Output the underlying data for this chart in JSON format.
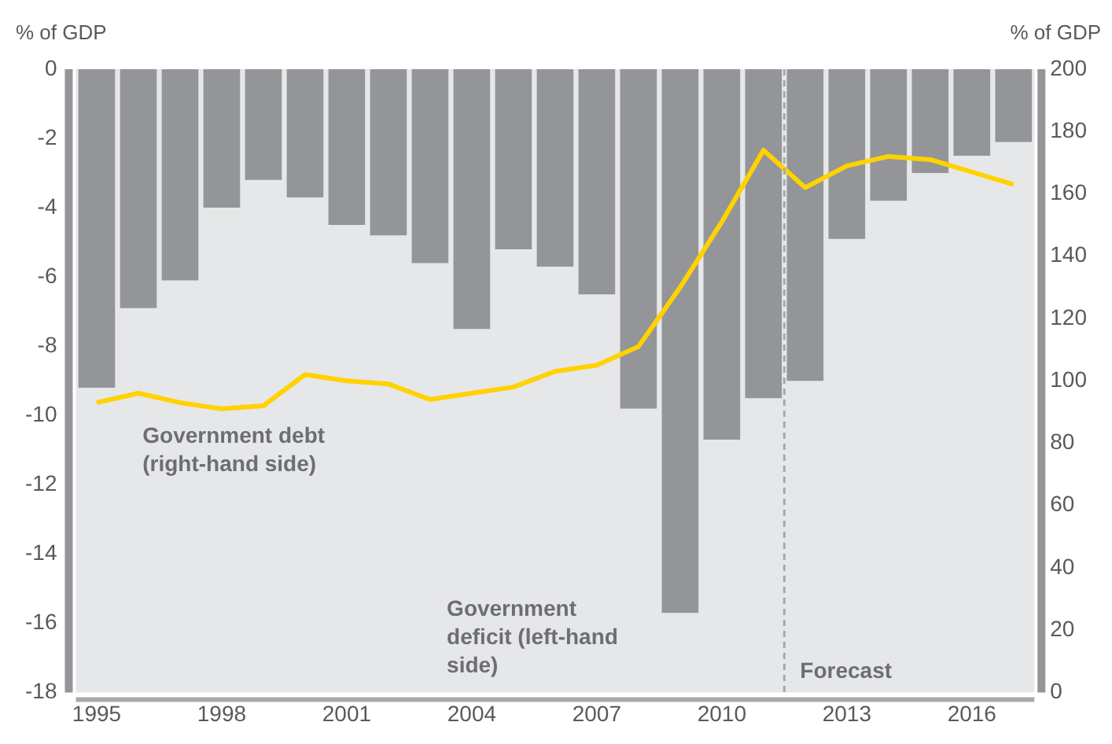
{
  "chart_data": {
    "type": "bar",
    "ylabel": "% of GDP",
    "y2label": "% of GDP",
    "x": [
      1995,
      1996,
      1997,
      1998,
      1999,
      2000,
      2001,
      2002,
      2003,
      2004,
      2005,
      2006,
      2007,
      2008,
      2009,
      2010,
      2011,
      2012,
      2013,
      2014,
      2015,
      2016,
      2017
    ],
    "series": [
      {
        "name": "Government deficit (left-hand side)",
        "color": "#939598",
        "values": [
          -9.2,
          -6.9,
          -6.1,
          -4.0,
          -3.2,
          -3.7,
          -4.5,
          -4.8,
          -5.6,
          -7.5,
          -5.2,
          -5.7,
          -6.5,
          -9.8,
          -15.7,
          -10.7,
          -9.5,
          -9.0,
          -4.9,
          -3.8,
          -3.0,
          -2.5,
          -2.1
        ]
      },
      {
        "name": "Government debt (right-hand side)",
        "type": "line",
        "axis": "y2",
        "color": "#ffd200",
        "values": [
          93,
          96,
          93,
          91,
          92,
          102,
          100,
          99,
          94,
          96,
          98,
          103,
          105,
          111,
          130,
          151,
          174,
          162,
          169,
          172,
          171,
          167,
          163
        ]
      }
    ],
    "xlim": [
      1994.5,
      2017.5
    ],
    "xticks": [
      1995,
      1998,
      2001,
      2004,
      2007,
      2010,
      2013,
      2016
    ],
    "ylim": [
      -18,
      0
    ],
    "yticks": [
      -18,
      -16,
      -14,
      -12,
      -10,
      -8,
      -6,
      -4,
      -2,
      0
    ],
    "y2lim": [
      0,
      200
    ],
    "y2ticks": [
      0,
      20,
      40,
      60,
      80,
      100,
      120,
      140,
      160,
      180,
      200
    ],
    "ref_lines": [
      {
        "axis": "x",
        "value": 2011.5,
        "label": "Forecast",
        "color": "#a7a9ac",
        "line_style": "dashed"
      }
    ],
    "grid": false,
    "legend": false,
    "marker": "none"
  }
}
